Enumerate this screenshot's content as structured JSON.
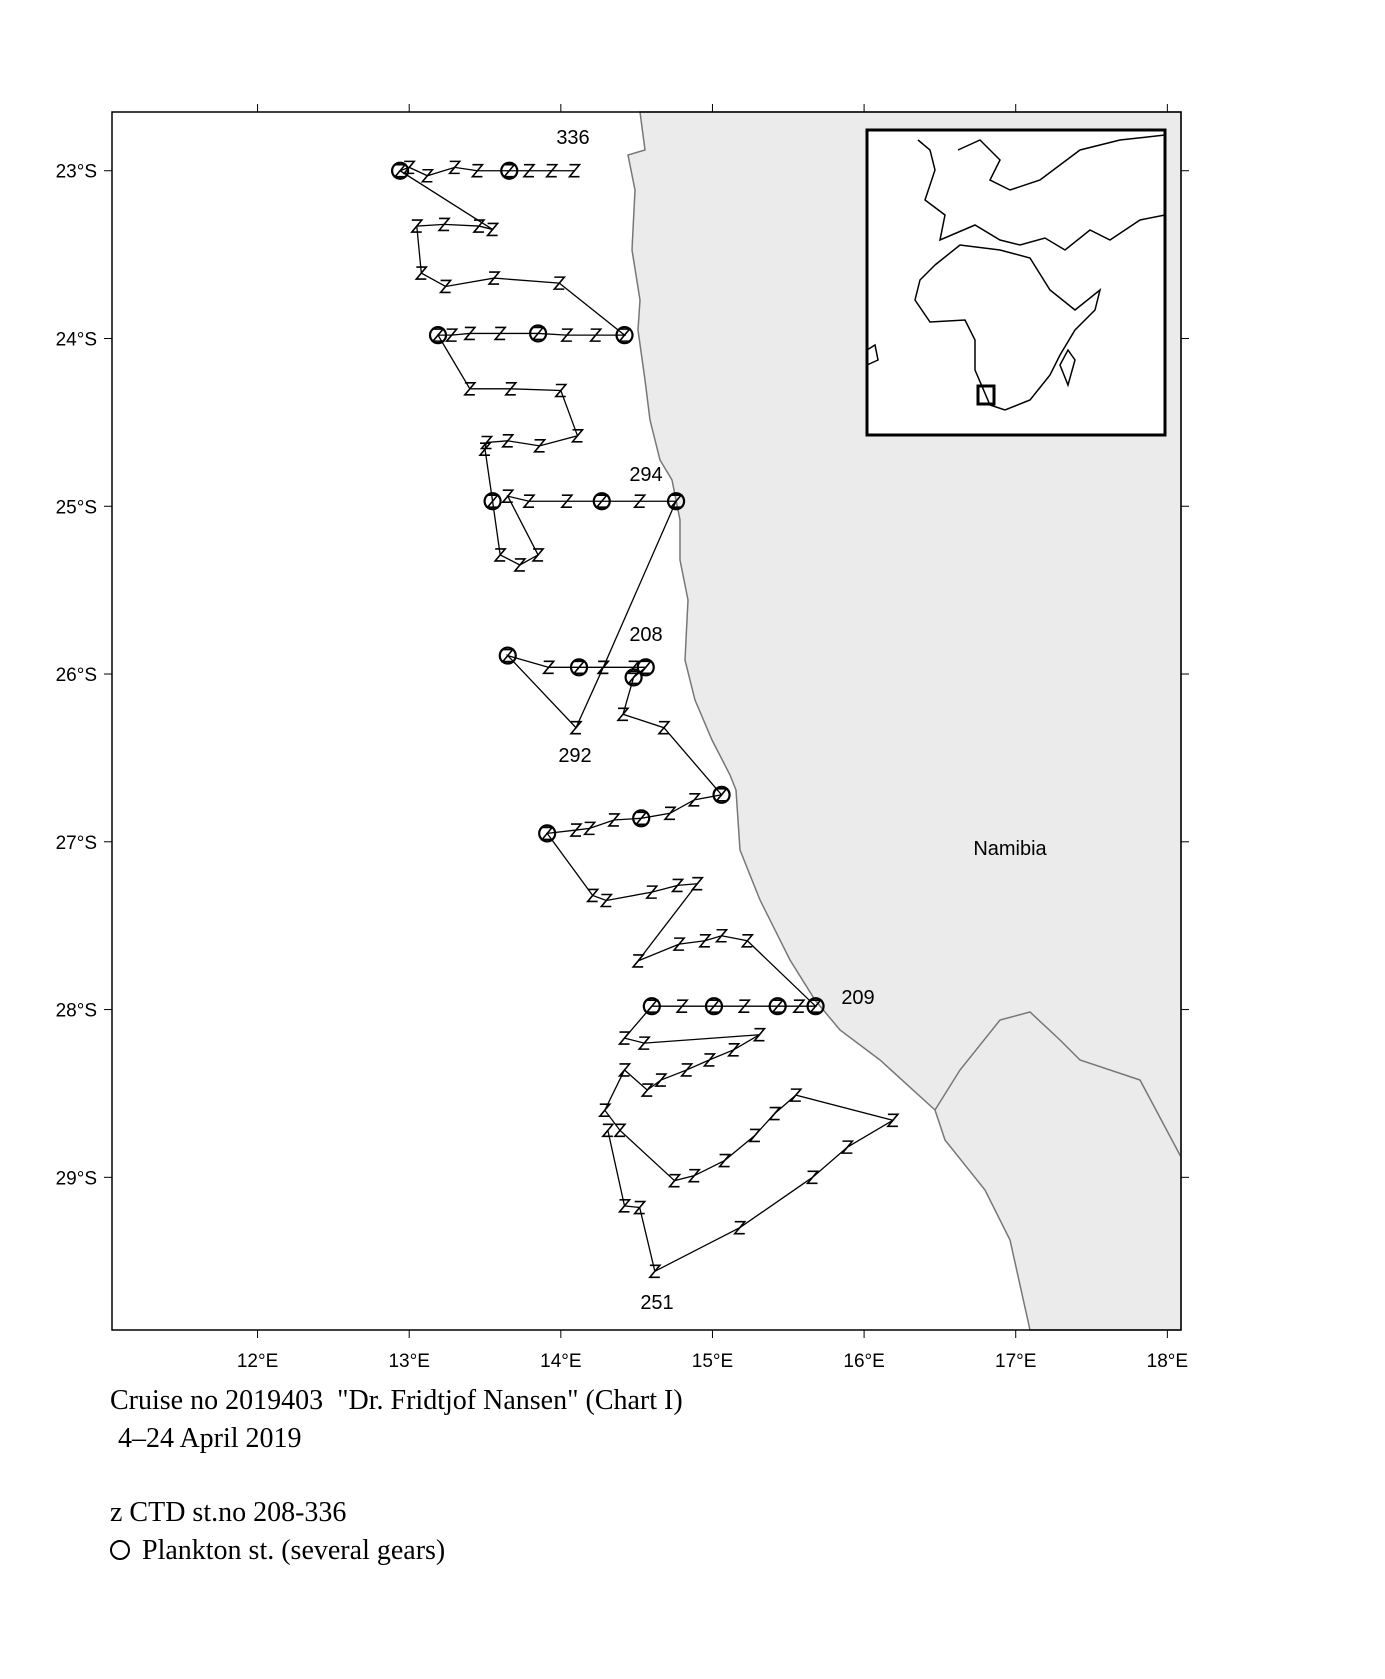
{
  "chart_data": {
    "type": "map",
    "xlim": [
      11.04,
      18.09
    ],
    "ylim": [
      -29.91,
      -22.65
    ],
    "xticks": [
      {
        "value": 12,
        "label": "12°E"
      },
      {
        "value": 13,
        "label": "13°E"
      },
      {
        "value": 14,
        "label": "14°E"
      },
      {
        "value": 15,
        "label": "15°E"
      },
      {
        "value": 16,
        "label": "16°E"
      },
      {
        "value": 17,
        "label": "17°E"
      },
      {
        "value": 18,
        "label": "18°E"
      }
    ],
    "yticks": [
      {
        "value": -23,
        "label": "23°S"
      },
      {
        "value": -24,
        "label": "24°S"
      },
      {
        "value": -25,
        "label": "25°S"
      },
      {
        "value": -26,
        "label": "26°S"
      },
      {
        "value": -27,
        "label": "27°S"
      },
      {
        "value": -28,
        "label": "28°S"
      },
      {
        "value": -29,
        "label": "29°S"
      }
    ],
    "annotations": [
      "336",
      "294",
      "208",
      "292",
      "209",
      "251",
      "Namibia"
    ],
    "caption": [
      "Cruise no 2019403  \"Dr. Fridtjof Nansen\" (Chart I)",
      "4–24 April 2019"
    ],
    "series": [
      {
        "name": "z CTD st.no 208-336",
        "color": "#000000",
        "x": [
          14.09,
          13.94,
          13.79,
          13.66,
          13.45,
          13.3,
          13.12,
          13.0,
          12.94,
          13.55,
          13.46,
          13.23,
          13.05,
          13.08,
          13.24,
          13.56,
          13.99,
          14.42,
          14.23,
          14.04,
          13.85,
          13.6,
          13.4,
          13.28,
          13.19,
          13.4,
          13.67,
          14.0,
          14.11,
          13.86,
          13.65,
          13.51,
          13.5,
          13.55,
          13.6,
          13.73,
          13.85,
          13.65,
          13.79,
          14.04,
          14.27,
          14.52,
          14.76,
          14.28,
          14.12,
          13.92,
          13.65,
          14.1,
          14.28,
          14.48,
          14.56,
          14.48,
          14.41,
          14.68,
          15.06,
          14.88,
          14.72,
          14.53,
          14.35,
          14.19,
          14.1,
          13.91,
          14.21,
          14.3,
          14.6,
          14.77,
          14.9,
          14.51,
          14.78,
          14.95,
          15.06,
          15.23,
          15.68,
          15.57,
          15.43,
          15.21,
          15.01,
          14.8,
          14.6,
          14.42,
          14.55,
          15.31,
          15.14,
          14.98,
          14.83,
          14.66,
          14.57,
          14.42,
          14.29,
          14.39,
          14.75,
          14.88,
          15.08,
          15.28,
          15.41,
          15.55,
          16.19,
          15.89,
          15.66,
          15.18,
          14.62,
          14.52,
          14.42,
          14.31
        ],
        "y": [
          -23.0,
          -23.0,
          -23.0,
          -23.0,
          -23.0,
          -22.98,
          -23.03,
          -22.98,
          -23.0,
          -23.35,
          -23.33,
          -23.32,
          -23.33,
          -23.61,
          -23.69,
          -23.64,
          -23.67,
          -23.98,
          -23.98,
          -23.98,
          -23.97,
          -23.97,
          -23.97,
          -23.98,
          -23.98,
          -24.3,
          -24.3,
          -24.31,
          -24.58,
          -24.64,
          -24.61,
          -24.62,
          -24.66,
          -24.97,
          -25.29,
          -25.35,
          -25.29,
          -24.94,
          -24.97,
          -24.97,
          -24.97,
          -24.97,
          -24.97,
          -25.96,
          -25.96,
          -25.96,
          -25.89,
          -26.32,
          -25.96,
          -25.96,
          -25.96,
          -26.02,
          -26.24,
          -26.32,
          -26.72,
          -26.75,
          -26.83,
          -26.86,
          -26.87,
          -26.92,
          -26.93,
          -26.95,
          -27.32,
          -27.35,
          -27.3,
          -27.26,
          -27.25,
          -27.71,
          -27.61,
          -27.59,
          -27.56,
          -27.59,
          -27.98,
          -27.98,
          -27.98,
          -27.98,
          -27.98,
          -27.98,
          -27.98,
          -28.17,
          -28.2,
          -28.15,
          -28.24,
          -28.3,
          -28.36,
          -28.42,
          -28.48,
          -28.36,
          -28.6,
          -28.72,
          -29.02,
          -28.99,
          -28.9,
          -28.75,
          -28.62,
          -28.51,
          -28.66,
          -28.82,
          -29.0,
          -29.3,
          -29.56,
          -29.18,
          -29.17,
          -28.72
        ]
      },
      {
        "name": "Plankton st. (several gears)",
        "color": "#000000",
        "x": [
          12.94,
          13.66,
          13.19,
          13.85,
          14.42,
          13.55,
          14.27,
          14.76,
          13.65,
          14.12,
          14.56,
          14.48,
          15.06,
          14.53,
          13.91,
          14.6,
          15.01,
          15.43,
          15.68
        ],
        "y": [
          -23.0,
          -23.0,
          -23.98,
          -23.97,
          -23.98,
          -24.97,
          -24.97,
          -24.97,
          -25.89,
          -25.96,
          -25.96,
          -26.02,
          -26.72,
          -26.86,
          -26.95,
          -27.98,
          -27.98,
          -27.98,
          -27.98
        ]
      }
    ]
  }
}
